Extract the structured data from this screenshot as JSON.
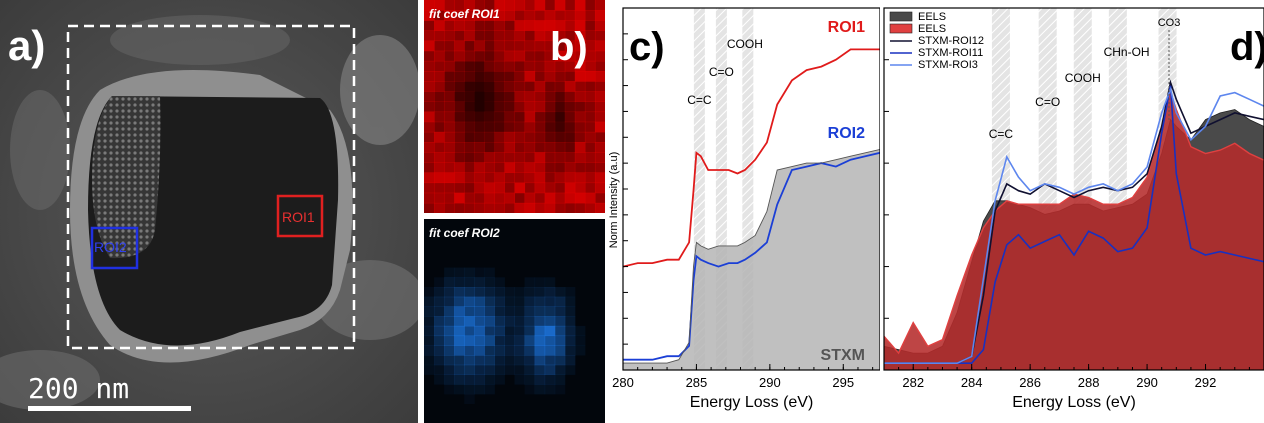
{
  "panel_a": {
    "letter": "a)",
    "scale_bar": "200 nm",
    "roi1": "ROI1",
    "roi2": "ROI2"
  },
  "panel_b": {
    "letter": "b)",
    "map1_label": "fit coef ROI1",
    "map2_label": "fit coef ROI2",
    "map1_color": "#e00000",
    "map2_color": "#1e7bea"
  },
  "chart_data": [
    {
      "type": "line",
      "panel": "c)",
      "xlabel": "Energy Loss (eV)",
      "ylabel": "Norm Intensity (a.u)",
      "xlim": [
        280,
        297.5
      ],
      "x_ticks": [
        "280",
        "285",
        "290",
        "295"
      ],
      "annotations": [
        "C=C",
        "C=O",
        "COOH"
      ],
      "band_centers_ev": [
        285.2,
        286.7,
        288.5
      ],
      "series": [
        {
          "name": "ROI1",
          "color": "#e01b1b",
          "x": [
            280,
            281,
            282,
            283,
            283.8,
            284.5,
            284.8,
            285.0,
            285.3,
            285.8,
            286.5,
            287.2,
            287.8,
            288.3,
            289.0,
            289.8,
            290.5,
            291.5,
            292.5,
            293.5,
            294.5,
            295.5,
            296.5,
            297.5
          ],
          "y": [
            0.3,
            0.31,
            0.31,
            0.32,
            0.32,
            0.37,
            0.52,
            0.63,
            0.62,
            0.58,
            0.58,
            0.58,
            0.57,
            0.58,
            0.61,
            0.66,
            0.77,
            0.84,
            0.87,
            0.88,
            0.9,
            0.93,
            0.93,
            0.93
          ]
        },
        {
          "name": "ROI2",
          "color": "#1b3fd6",
          "x": [
            280,
            281,
            282,
            283,
            283.8,
            284.5,
            284.8,
            285.0,
            285.3,
            285.8,
            286.5,
            287.2,
            287.8,
            288.3,
            289.0,
            289.8,
            290.5,
            291.5,
            292.5,
            293.5,
            294.5,
            295.5,
            296.5,
            297.5
          ],
          "y": [
            0.01,
            0.01,
            0.01,
            0.02,
            0.02,
            0.05,
            0.24,
            0.31,
            0.3,
            0.29,
            0.28,
            0.29,
            0.29,
            0.3,
            0.32,
            0.35,
            0.46,
            0.56,
            0.57,
            0.58,
            0.57,
            0.59,
            0.6,
            0.61
          ]
        },
        {
          "name": "STXM",
          "color": "#b5b5b5",
          "x": [
            280,
            281,
            282,
            283,
            283.8,
            284.5,
            284.8,
            285.0,
            285.3,
            285.8,
            286.5,
            287.2,
            287.8,
            288.3,
            289.0,
            289.8,
            290.5,
            291.5,
            292.5,
            293.5,
            294.5,
            295.5,
            296.5,
            297.5
          ],
          "y": [
            0.0,
            0.0,
            0.0,
            0.0,
            0.01,
            0.06,
            0.28,
            0.35,
            0.34,
            0.33,
            0.34,
            0.34,
            0.34,
            0.35,
            0.37,
            0.44,
            0.56,
            0.57,
            0.58,
            0.58,
            0.59,
            0.6,
            0.61,
            0.62
          ]
        }
      ]
    },
    {
      "type": "area",
      "panel": "d)",
      "xlabel": "Energy Loss (eV)",
      "xlim": [
        281,
        294
      ],
      "x_ticks": [
        "282",
        "284",
        "286",
        "288",
        "290",
        "292"
      ],
      "annotations": [
        "C=C",
        "C=O",
        "COOH",
        "CHn-OH",
        "CO3"
      ],
      "band_centers_ev": [
        285.0,
        286.6,
        287.8,
        289.0,
        290.7
      ],
      "legend_position": "top-left",
      "series": [
        {
          "name": "EELS",
          "color": "#4a4a4a",
          "x": [
            281,
            281.5,
            282,
            282.5,
            283,
            283.5,
            284,
            284.4,
            284.8,
            285.2,
            285.6,
            286.0,
            286.5,
            287.0,
            287.5,
            288.0,
            288.5,
            289.0,
            289.5,
            290.0,
            290.5,
            290.8,
            291.0,
            291.5,
            292,
            292.5,
            293,
            293.5,
            294
          ],
          "y": [
            0.05,
            0.04,
            0.03,
            0.03,
            0.05,
            0.15,
            0.3,
            0.42,
            0.48,
            0.48,
            0.47,
            0.46,
            0.44,
            0.45,
            0.47,
            0.47,
            0.45,
            0.46,
            0.47,
            0.5,
            0.62,
            0.72,
            0.7,
            0.66,
            0.72,
            0.74,
            0.75,
            0.72,
            0.7
          ]
        },
        {
          "name": "EELS",
          "color": "#e04040",
          "x": [
            281,
            281.5,
            282,
            282.5,
            283,
            283.5,
            284,
            284.4,
            284.8,
            285.2,
            285.6,
            286.0,
            286.5,
            287.0,
            287.5,
            288.0,
            288.5,
            289.0,
            289.5,
            290.0,
            290.5,
            290.8,
            291.0,
            291.5,
            292,
            292.5,
            293,
            293.5,
            294
          ],
          "y": [
            0.08,
            0.03,
            0.12,
            0.05,
            0.07,
            0.2,
            0.32,
            0.4,
            0.45,
            0.48,
            0.47,
            0.47,
            0.47,
            0.47,
            0.5,
            0.49,
            0.47,
            0.47,
            0.49,
            0.55,
            0.7,
            0.8,
            0.75,
            0.64,
            0.62,
            0.63,
            0.65,
            0.62,
            0.6
          ]
        },
        {
          "name": "STXM-ROI12",
          "color": "#101030",
          "x": [
            281,
            281.5,
            282,
            282.5,
            283,
            283.5,
            284,
            284.4,
            284.8,
            285.2,
            285.6,
            286.0,
            286.5,
            287.0,
            287.5,
            288.0,
            288.5,
            289.0,
            289.5,
            290.0,
            290.5,
            290.8,
            291.0,
            291.5,
            292,
            292.5,
            293,
            293.5,
            294
          ],
          "y": [
            0.0,
            0.0,
            0.0,
            0.0,
            0.0,
            0.0,
            0.02,
            0.2,
            0.45,
            0.53,
            0.51,
            0.5,
            0.53,
            0.51,
            0.49,
            0.51,
            0.52,
            0.51,
            0.52,
            0.56,
            0.7,
            0.83,
            0.78,
            0.68,
            0.7,
            0.72,
            0.74,
            0.73,
            0.72
          ]
        },
        {
          "name": "STXM-ROI11",
          "color": "#1830c0",
          "x": [
            281,
            281.5,
            282,
            282.5,
            283,
            283.5,
            284,
            284.4,
            284.8,
            285.2,
            285.6,
            286.0,
            286.5,
            287.0,
            287.5,
            288.0,
            288.5,
            289.0,
            289.5,
            290.0,
            290.5,
            290.8,
            291.0,
            291.5,
            292,
            292.5,
            293,
            293.5,
            294
          ],
          "y": [
            0.0,
            0.0,
            0.0,
            0.0,
            0.0,
            0.0,
            0.0,
            0.04,
            0.24,
            0.35,
            0.38,
            0.34,
            0.36,
            0.38,
            0.32,
            0.39,
            0.37,
            0.33,
            0.34,
            0.4,
            0.68,
            0.82,
            0.56,
            0.34,
            0.32,
            0.33,
            0.32,
            0.31,
            0.3
          ]
        },
        {
          "name": "STXM-ROI3",
          "color": "#5d86ee",
          "x": [
            281,
            281.5,
            282,
            282.5,
            283,
            283.5,
            284,
            284.4,
            284.8,
            285.2,
            285.6,
            286.0,
            286.5,
            287.0,
            287.5,
            288.0,
            288.5,
            289.0,
            289.5,
            290.0,
            290.5,
            290.8,
            291.0,
            291.5,
            292,
            292.5,
            293,
            293.5,
            294
          ],
          "y": [
            0.0,
            0.0,
            0.0,
            0.0,
            0.0,
            0.0,
            0.02,
            0.25,
            0.48,
            0.61,
            0.55,
            0.51,
            0.53,
            0.52,
            0.5,
            0.52,
            0.53,
            0.51,
            0.53,
            0.58,
            0.74,
            0.81,
            0.74,
            0.66,
            0.7,
            0.79,
            0.8,
            0.78,
            0.76
          ]
        }
      ]
    }
  ]
}
